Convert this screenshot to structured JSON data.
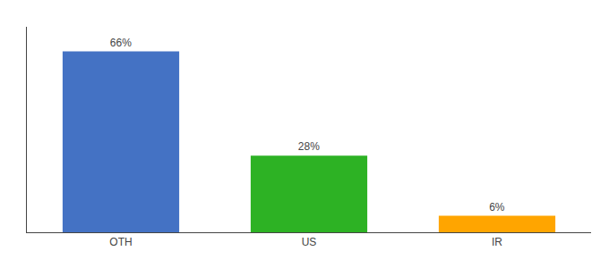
{
  "chart_data": {
    "type": "bar",
    "categories": [
      "OTH",
      "US",
      "IR"
    ],
    "values": [
      66,
      28,
      6
    ],
    "value_labels": [
      "66%",
      "28%",
      "6%"
    ],
    "data_labels": true,
    "colors": [
      "#4472C4",
      "#2DB224",
      "#FFA500"
    ],
    "ylim": [
      0,
      75
    ],
    "grid": false,
    "tick_labels": "x"
  }
}
